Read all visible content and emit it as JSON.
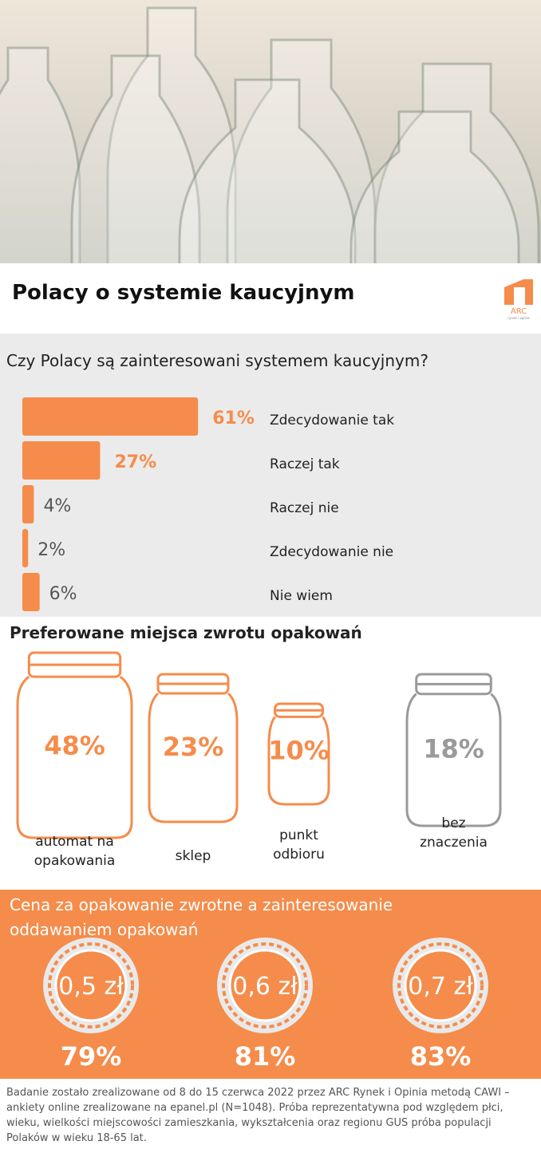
{
  "header": {
    "title": "Polacy o systemie kaucyjnym",
    "logo": "ARC",
    "logo_sub": "rynek i opinia"
  },
  "chart_data": [
    {
      "type": "bar",
      "title": "Czy Polacy są zainteresowani systemem kaucyjnym?",
      "categories": [
        "Zdecydowanie tak",
        "Raczej tak",
        "Raczej nie",
        "Zdecydowanie nie",
        "Nie wiem"
      ],
      "values": [
        61,
        27,
        4,
        2,
        6
      ],
      "value_labels": [
        "61%",
        "27%",
        "4%",
        "2%",
        "6%"
      ],
      "color": "#f58c4b",
      "xlim": [
        0,
        100
      ]
    }
  ],
  "jars": {
    "title": "Preferowane miejsca zwrotu opakowań",
    "items": [
      {
        "value_label": "48%",
        "label": "automat na opakowania",
        "color": "#f58c4b"
      },
      {
        "value_label": "23%",
        "label": "sklep",
        "color": "#f58c4b"
      },
      {
        "value_label": "10%",
        "label": "punkt odbioru",
        "color": "#f58c4b"
      },
      {
        "value_label": "18%",
        "label": "bez znaczenia",
        "color": "#9a9a9a"
      }
    ]
  },
  "coins": {
    "title": "Cena za opakowanie zwrotne a zainteresowanie oddawaniem opakowań",
    "items": [
      {
        "price": "0,5 zł",
        "value_label": "79%"
      },
      {
        "price": "0,6 zł",
        "value_label": "81%"
      },
      {
        "price": "0,7 zł",
        "value_label": "83%"
      }
    ]
  },
  "footer": {
    "note": "Badanie zostało zrealizowane od 8 do 15 czerwca 2022 przez ARC Rynek i Opinia metodą CAWI – ankiety online zrealizowane na epanel.pl (N=1048). Próba reprezentatywna pod względem płci, wieku, wielkości miejscowości zamieszkania, wykształcenia oraz regionu GUS próba populacji Polaków w wieku 18-65 lat."
  }
}
